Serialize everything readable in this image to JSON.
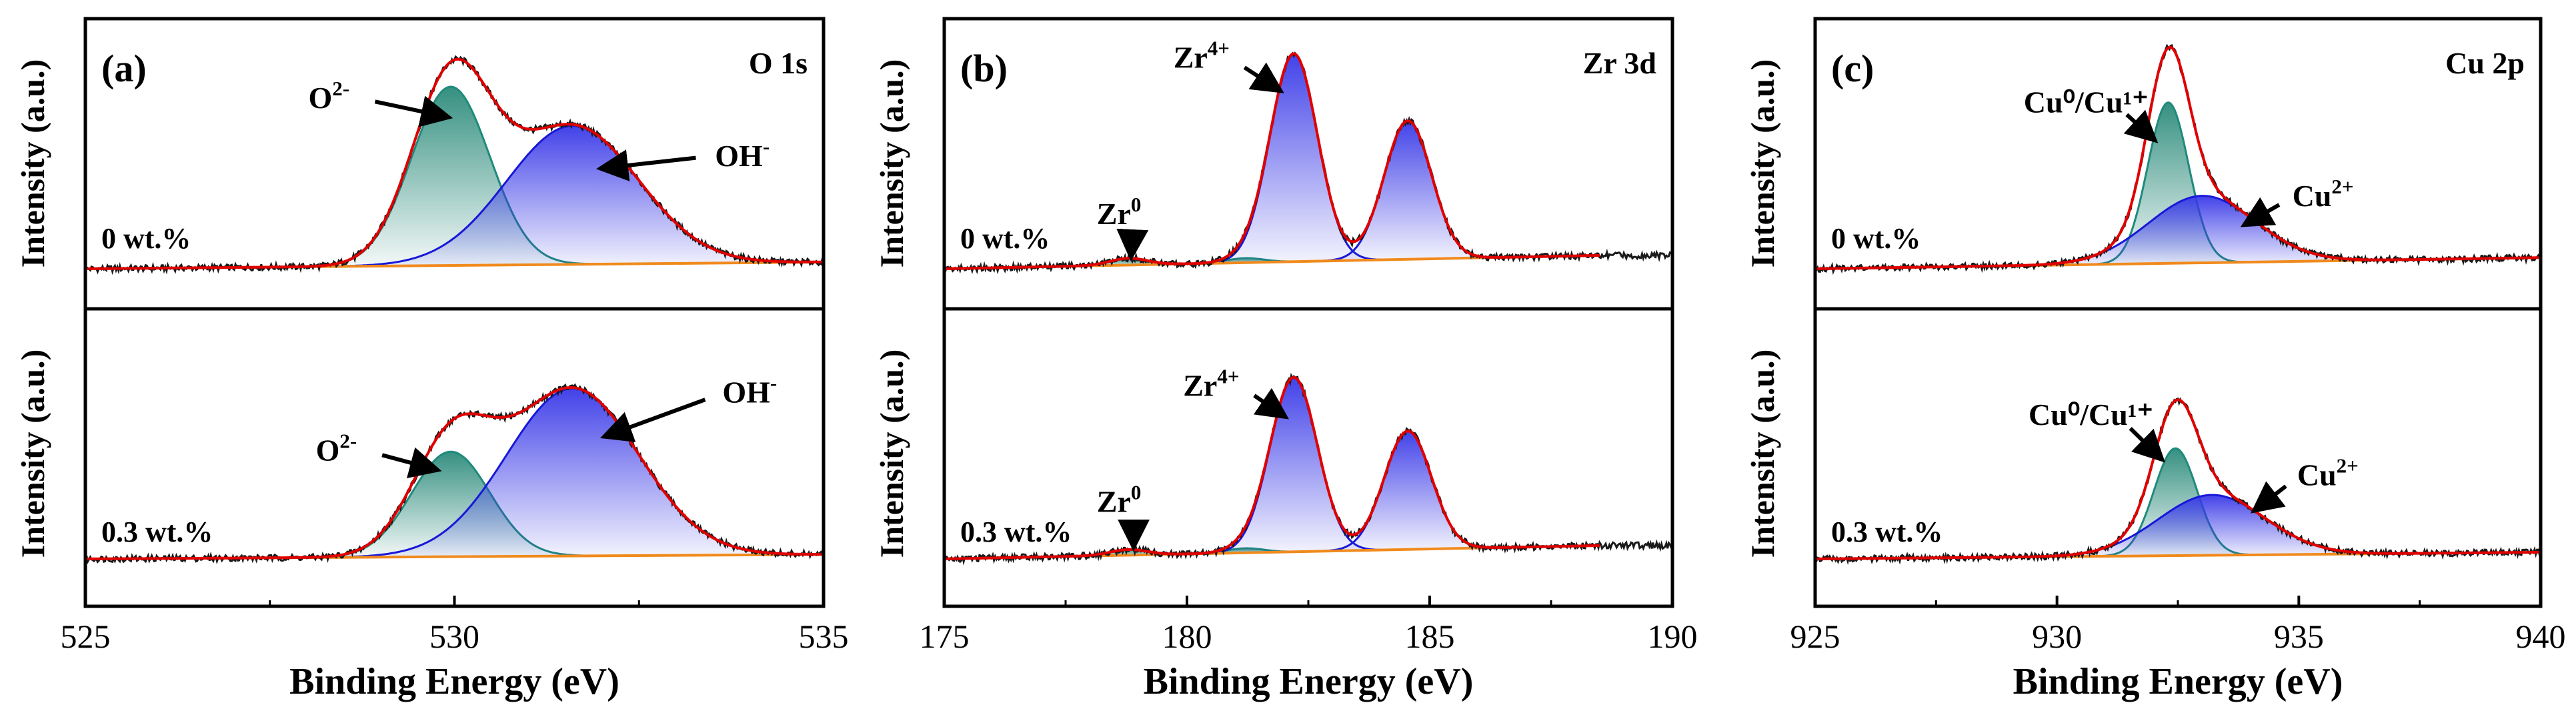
{
  "figure": {
    "shared": {
      "ylabel": "Intensity (a.u.)",
      "xlabel": "Binding Energy (eV)"
    }
  },
  "colors": {
    "raw": "#1a1a1a",
    "envelope": "#e00000",
    "background": "#f08a1c",
    "component_green": "#1f8a7c",
    "component_blue": "#1818d8",
    "fill_green": "#2a8a7a",
    "fill_blue": "#3838e8",
    "axis": "#000000"
  },
  "chart_data": [
    {
      "id": "a",
      "type": "line",
      "panel_label": "(a)",
      "core_level": "O 1s",
      "xlabel": "Binding Energy (eV)",
      "ylabel": "Intensity (a.u.)",
      "xlim": [
        525,
        535
      ],
      "xticks": [
        525,
        530,
        535
      ],
      "xtick_labels": [
        "525",
        "530",
        "535"
      ],
      "y_ticks_shown": false,
      "subplots": [
        {
          "label": "0 wt.%",
          "x_range": [
            525,
            535
          ],
          "baseline": {
            "start": 0.0,
            "end": 0.03
          },
          "components": [
            {
              "name": "O²⁻",
              "base": "O",
              "sup": "2-",
              "center": 529.95,
              "height": 0.8,
              "fwhm": 1.25,
              "color": "green"
            },
            {
              "name": "OH⁻",
              "base": "OH",
              "sup": "-",
              "center": 531.6,
              "height": 0.62,
              "fwhm": 2.1,
              "color": "blue"
            }
          ],
          "annotations": [
            {
              "base": "O",
              "sup": "2-",
              "x": 528.3,
              "y": 0.72,
              "ax": 529.9,
              "ay": 0.68
            },
            {
              "base": "OH",
              "sup": "-",
              "x": 533.9,
              "y": 0.46,
              "ax": 532.0,
              "ay": 0.45
            }
          ]
        },
        {
          "label": "0.3 wt.%",
          "x_range": [
            525,
            535
          ],
          "baseline": {
            "start": 0.0,
            "end": 0.02
          },
          "components": [
            {
              "name": "O²⁻",
              "base": "O",
              "sup": "2-",
              "center": 529.95,
              "height": 0.47,
              "fwhm": 1.25,
              "color": "green"
            },
            {
              "name": "OH⁻",
              "base": "OH",
              "sup": "-",
              "center": 531.6,
              "height": 0.75,
              "fwhm": 2.1,
              "color": "blue"
            }
          ],
          "annotations": [
            {
              "base": "O",
              "sup": "2-",
              "x": 528.4,
              "y": 0.44,
              "ax": 529.75,
              "ay": 0.4
            },
            {
              "base": "OH",
              "sup": "-",
              "x": 534.0,
              "y": 0.7,
              "ax": 532.05,
              "ay": 0.55
            }
          ]
        }
      ]
    },
    {
      "id": "b",
      "type": "line",
      "panel_label": "(b)",
      "core_level": "Zr 3d",
      "xlabel": "Binding Energy (eV)",
      "ylabel": "Intensity (a.u.)",
      "xlim": [
        175,
        190
      ],
      "xticks": [
        175,
        180,
        185,
        190
      ],
      "xtick_labels": [
        "175",
        "180",
        "185",
        "190"
      ],
      "y_ticks_shown": false,
      "subplots": [
        {
          "label": "0 wt.%",
          "x_range": [
            175,
            190
          ],
          "fit_range": [
            175,
            188.5
          ],
          "baseline": {
            "start": 0.0,
            "end": 0.06
          },
          "components": [
            {
              "name": "Zr⁰",
              "base": "Zr",
              "sup": "0",
              "center": 178.8,
              "height": 0.03,
              "fwhm": 0.9,
              "color": "green"
            },
            {
              "name": "Zr⁰ 3d3/2",
              "base": "Zr",
              "sup": "0",
              "center": 181.2,
              "height": 0.02,
              "fwhm": 0.9,
              "color": "green"
            },
            {
              "name": "Zr⁴⁺ 3d5/2",
              "base": "Zr",
              "sup": "4+",
              "center": 182.2,
              "height": 0.93,
              "fwhm": 1.15,
              "color": "blue"
            },
            {
              "name": "Zr⁴⁺ 3d3/2",
              "base": "Zr",
              "sup": "4+",
              "center": 184.55,
              "height": 0.62,
              "fwhm": 1.15,
              "color": "blue"
            }
          ],
          "annotations": [
            {
              "base": "Zr",
              "sup": "4+",
              "x": 180.3,
              "y": 0.9,
              "ax": 181.9,
              "ay": 0.8
            },
            {
              "base": "Zr",
              "sup": "0",
              "x": 178.6,
              "y": 0.2,
              "ax": 178.85,
              "ay": 0.06
            }
          ]
        },
        {
          "label": "0.3 wt.%",
          "x_range": [
            175,
            190
          ],
          "fit_range": [
            175,
            188.5
          ],
          "baseline": {
            "start": 0.0,
            "end": 0.06
          },
          "components": [
            {
              "name": "Zr⁰",
              "base": "Zr",
              "sup": "0",
              "center": 178.8,
              "height": 0.025,
              "fwhm": 0.9,
              "color": "green"
            },
            {
              "name": "Zr⁰ 3d3/2",
              "base": "Zr",
              "sup": "0",
              "center": 181.2,
              "height": 0.02,
              "fwhm": 0.9,
              "color": "green"
            },
            {
              "name": "Zr⁴⁺ 3d5/2",
              "base": "Zr",
              "sup": "4+",
              "center": 182.2,
              "height": 0.78,
              "fwhm": 1.15,
              "color": "blue"
            },
            {
              "name": "Zr⁴⁺ 3d3/2",
              "base": "Zr",
              "sup": "4+",
              "center": 184.55,
              "height": 0.53,
              "fwhm": 1.15,
              "color": "blue"
            }
          ],
          "annotations": [
            {
              "base": "Zr",
              "sup": "4+",
              "x": 180.5,
              "y": 0.73,
              "ax": 182.0,
              "ay": 0.64
            },
            {
              "base": "Zr",
              "sup": "0",
              "x": 178.6,
              "y": 0.21,
              "ax": 178.9,
              "ay": 0.06
            }
          ]
        }
      ]
    },
    {
      "id": "c",
      "type": "line",
      "panel_label": "(c)",
      "core_level": "Cu 2p",
      "xlabel": "Binding Energy (eV)",
      "ylabel": "Intensity (a.u.)",
      "xlim": [
        925,
        940
      ],
      "xticks": [
        925,
        930,
        935,
        940
      ],
      "xtick_labels": [
        "925",
        "930",
        "935",
        "940"
      ],
      "y_ticks_shown": false,
      "subplots": [
        {
          "label": "0 wt.%",
          "x_range": [
            925,
            940
          ],
          "baseline": {
            "start": 0.0,
            "end": 0.05
          },
          "components": [
            {
              "name": "Cu⁰/Cu¹⁺",
              "center": 932.3,
              "height": 0.72,
              "fwhm": 1.0,
              "color": "green"
            },
            {
              "name": "Cu²⁺",
              "base": "Cu",
              "sup": "2+",
              "center": 933.0,
              "height": 0.3,
              "fwhm": 2.6,
              "color": "blue"
            }
          ],
          "annotations": [
            {
              "label": "Cu⁰/Cu¹⁺",
              "x": 930.6,
              "y": 0.7,
              "ax": 932.0,
              "ay": 0.58
            },
            {
              "base": "Cu",
              "sup": "2+",
              "x": 935.5,
              "y": 0.28,
              "ax": 933.9,
              "ay": 0.2
            }
          ]
        },
        {
          "label": "0.3 wt.%",
          "x_range": [
            925,
            940
          ],
          "baseline": {
            "start": 0.0,
            "end": 0.03
          },
          "components": [
            {
              "name": "Cu⁰/Cu¹⁺",
              "center": 932.45,
              "height": 0.48,
              "fwhm": 1.05,
              "color": "green"
            },
            {
              "name": "Cu²⁺",
              "base": "Cu",
              "sup": "2+",
              "center": 933.2,
              "height": 0.27,
              "fwhm": 2.6,
              "color": "blue"
            }
          ],
          "annotations": [
            {
              "label": "Cu⁰/Cu¹⁺",
              "x": 930.7,
              "y": 0.6,
              "ax": 932.15,
              "ay": 0.45
            },
            {
              "base": "Cu",
              "sup": "2+",
              "x": 935.6,
              "y": 0.33,
              "ax": 934.1,
              "ay": 0.22
            }
          ]
        }
      ]
    }
  ]
}
